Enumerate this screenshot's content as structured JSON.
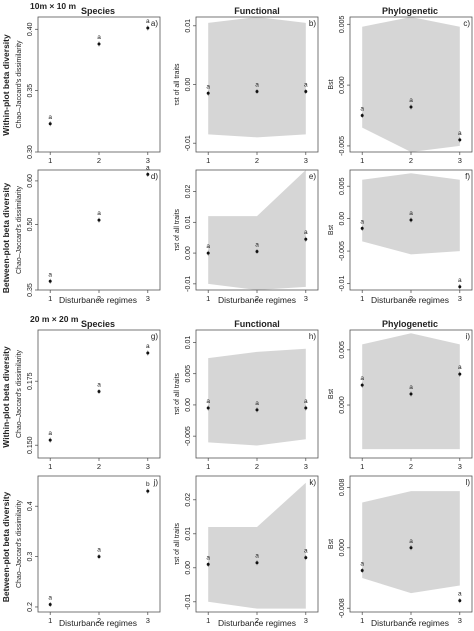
{
  "section_labels": [
    "10m × 10 m",
    "20 m × 20 m"
  ],
  "column_titles": [
    "Species",
    "Functional",
    "Phylogenetic"
  ],
  "row_labels": [
    "Within-plot beta diversity",
    "Between-plot beta diversity",
    "Within-plot beta diversity",
    "Between-plot beta diversity"
  ],
  "xlabel": "Disturbance regimes",
  "chart_data": [
    {
      "id": "a",
      "type": "scatter",
      "title": "Species",
      "ylabel": "Chao–Jaccard's dissimilarity",
      "x": [
        1,
        2,
        3
      ],
      "y": [
        0.323,
        0.388,
        0.401
      ],
      "sig": [
        "a",
        "a",
        "a"
      ],
      "ylim": [
        0.3,
        0.41
      ],
      "yticks": [
        0.3,
        0.35,
        0.4
      ],
      "ytick_labels": [
        "0.30",
        "0.35",
        "0.40"
      ],
      "band": null
    },
    {
      "id": "b",
      "type": "scatter",
      "title": "Functional",
      "ylabel": "τst of all traits",
      "x": [
        1,
        2,
        3
      ],
      "y": [
        -0.0015,
        -0.0012,
        -0.0012
      ],
      "sig": [
        "a",
        "a",
        "a"
      ],
      "ylim": [
        -0.0115,
        0.0115
      ],
      "yticks": [
        -0.01,
        0.0,
        0.01
      ],
      "ytick_labels": [
        "-0.01",
        "0.00",
        "0.01"
      ],
      "band": {
        "lower": [
          -0.0085,
          -0.009,
          -0.0085
        ],
        "upper": [
          0.0105,
          0.0115,
          0.0105
        ]
      }
    },
    {
      "id": "c",
      "type": "scatter",
      "title": "Phylogenetic",
      "ylabel": "Bst",
      "x": [
        1,
        2,
        3
      ],
      "y": [
        -0.0025,
        -0.0018,
        -0.0045
      ],
      "sig": [
        "a",
        "a",
        "a"
      ],
      "ylim": [
        -0.0055,
        0.0056
      ],
      "yticks": [
        -0.005,
        0.0,
        0.005
      ],
      "ytick_labels": [
        "-0.005",
        "0.000",
        "0.005"
      ],
      "band": {
        "lower": [
          -0.0035,
          -0.0055,
          -0.005
        ],
        "upper": [
          0.0048,
          0.0056,
          0.0048
        ]
      }
    },
    {
      "id": "d",
      "type": "scatter",
      "title": "",
      "ylabel": "Chao–Jaccard's dissimilarity",
      "x": [
        1,
        2,
        3
      ],
      "y": [
        0.37,
        0.51,
        0.615
      ],
      "sig": [
        "a",
        "a",
        "a"
      ],
      "ylim": [
        0.35,
        0.625
      ],
      "yticks": [
        0.35,
        0.5,
        0.6
      ],
      "ytick_labels": [
        "0.35",
        "0.50",
        "0.60"
      ],
      "band": null
    },
    {
      "id": "e",
      "type": "scatter",
      "title": "",
      "ylabel": "τst of all traits",
      "x": [
        1,
        2,
        3
      ],
      "y": [
        0.0,
        0.0005,
        0.0045
      ],
      "sig": [
        "a",
        "a",
        "a"
      ],
      "ylim": [
        -0.012,
        0.027
      ],
      "yticks": [
        -0.01,
        0.0,
        0.01,
        0.02
      ],
      "ytick_labels": [
        "-0.01",
        "0.00",
        "0.01",
        "0.02"
      ],
      "band": {
        "lower": [
          -0.01,
          -0.012,
          -0.011
        ],
        "upper": [
          0.012,
          0.012,
          0.027
        ]
      }
    },
    {
      "id": "f",
      "type": "scatter",
      "title": "",
      "ylabel": "Bst",
      "x": [
        1,
        2,
        3
      ],
      "y": [
        -0.0015,
        -0.0002,
        -0.0105
      ],
      "sig": [
        "a",
        "a",
        "a"
      ],
      "ylim": [
        -0.011,
        0.0075
      ],
      "yticks": [
        -0.01,
        -0.005,
        0.0,
        0.005
      ],
      "ytick_labels": [
        "-0.01",
        "-0.005",
        "0.00",
        "0.005"
      ],
      "band": {
        "lower": [
          -0.0035,
          -0.0055,
          -0.005
        ],
        "upper": [
          0.006,
          0.007,
          0.006
        ]
      }
    },
    {
      "id": "g",
      "type": "scatter",
      "title": "Species",
      "ylabel": "Chao–Jaccard's dissimilarity",
      "x": [
        1,
        2,
        3
      ],
      "y": [
        0.152,
        0.171,
        0.186
      ],
      "sig": [
        "a",
        "a",
        "a"
      ],
      "ylim": [
        0.145,
        0.195
      ],
      "yticks": [
        0.15,
        0.175
      ],
      "ytick_labels": [
        "0.150",
        "0.175"
      ],
      "band": null
    },
    {
      "id": "h",
      "type": "scatter",
      "title": "Functional",
      "ylabel": "τst of all traits",
      "x": [
        1,
        2,
        3
      ],
      "y": [
        -0.0005,
        -0.0008,
        -0.0005
      ],
      "sig": [
        "a",
        "a",
        "a"
      ],
      "ylim": [
        -0.0085,
        0.012
      ],
      "yticks": [
        -0.005,
        0.0,
        0.005,
        0.01
      ],
      "ytick_labels": [
        "-0.005",
        "0.00",
        "0.005",
        "0.01"
      ],
      "band": {
        "lower": [
          -0.006,
          -0.0065,
          -0.0055
        ],
        "upper": [
          0.0075,
          0.0085,
          0.009
        ]
      }
    },
    {
      "id": "i",
      "type": "scatter",
      "title": "Phylogenetic",
      "ylabel": "Bst",
      "x": [
        1,
        2,
        3
      ],
      "y": [
        0.0018,
        0.001,
        0.0028
      ],
      "sig": [
        "a",
        "a",
        "a"
      ],
      "ylim": [
        -0.0048,
        0.0068
      ],
      "yticks": [
        0.0,
        0.005
      ],
      "ytick_labels": [
        "0.000",
        "0.005"
      ],
      "band": {
        "lower": [
          -0.004,
          -0.004,
          -0.004
        ],
        "upper": [
          0.0055,
          0.0065,
          0.0055
        ]
      }
    },
    {
      "id": "j",
      "type": "scatter",
      "title": "",
      "ylabel": "Chao–Jaccard's dissimilarity",
      "x": [
        1,
        2,
        3
      ],
      "y": [
        0.205,
        0.3,
        0.43
      ],
      "sig": [
        "a",
        "a",
        "b"
      ],
      "ylim": [
        0.19,
        0.46
      ],
      "yticks": [
        0.2,
        0.3,
        0.4
      ],
      "ytick_labels": [
        "0.2",
        "0.3",
        "0.4"
      ],
      "band": null
    },
    {
      "id": "k",
      "type": "scatter",
      "title": "",
      "ylabel": "τst of all traits",
      "x": [
        1,
        2,
        3
      ],
      "y": [
        0.001,
        0.0015,
        0.003
      ],
      "sig": [
        "a",
        "a",
        "a"
      ],
      "ylim": [
        -0.013,
        0.027
      ],
      "yticks": [
        -0.01,
        0.0,
        0.01,
        0.02
      ],
      "ytick_labels": [
        "-0.01",
        "0.00",
        "0.01",
        "0.02"
      ],
      "band": {
        "lower": [
          -0.01,
          -0.012,
          -0.012
        ],
        "upper": [
          0.012,
          0.012,
          0.025
        ]
      }
    },
    {
      "id": "l",
      "type": "scatter",
      "title": "",
      "ylabel": "Bst",
      "x": [
        1,
        2,
        3
      ],
      "y": [
        -0.003,
        0.0,
        -0.007
      ],
      "sig": [
        "a",
        "a",
        "a"
      ],
      "ylim": [
        -0.0085,
        0.0095
      ],
      "yticks": [
        -0.008,
        0.0,
        0.008
      ],
      "ytick_labels": [
        "-0.008",
        "0.000",
        "0.008"
      ],
      "band": {
        "lower": [
          -0.004,
          -0.006,
          -0.005
        ],
        "upper": [
          0.006,
          0.0075,
          0.0075
        ]
      }
    }
  ]
}
